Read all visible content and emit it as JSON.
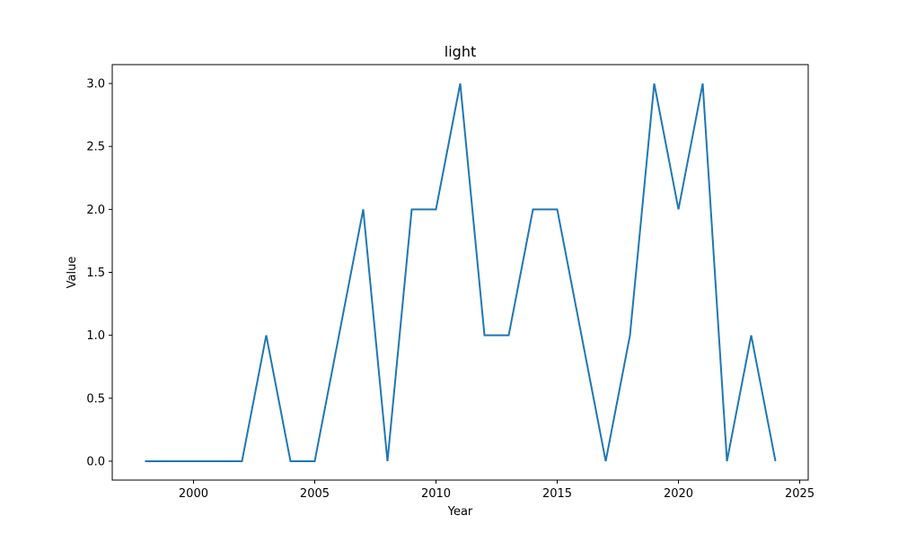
{
  "chart_data": {
    "type": "line",
    "title": "light",
    "xlabel": "Year",
    "ylabel": "Value",
    "xlim": [
      1996.65,
      2025.35
    ],
    "ylim": [
      -0.15,
      3.15
    ],
    "x_ticks": [
      2000,
      2005,
      2010,
      2015,
      2020,
      2025
    ],
    "y_ticks": [
      0.0,
      0.5,
      1.0,
      1.5,
      2.0,
      2.5,
      3.0
    ],
    "x_tick_labels": [
      "2000",
      "2005",
      "2010",
      "2015",
      "2020",
      "2025"
    ],
    "y_tick_labels": [
      "0.0",
      "0.5",
      "1.0",
      "1.5",
      "2.0",
      "2.5",
      "3.0"
    ],
    "grid": false,
    "series": [
      {
        "color": "#1f77b4",
        "x": [
          1998,
          1999,
          2000,
          2001,
          2002,
          2003,
          2004,
          2005,
          2006,
          2007,
          2008,
          2009,
          2010,
          2011,
          2012,
          2013,
          2014,
          2015,
          2016,
          2017,
          2018,
          2019,
          2020,
          2021,
          2022,
          2023,
          2024
        ],
        "values": [
          0,
          0,
          0,
          0,
          0,
          1,
          0,
          0,
          1,
          2,
          0,
          2,
          2,
          3,
          1,
          1,
          2,
          2,
          1,
          0,
          1,
          3,
          2,
          3,
          0,
          1,
          0
        ]
      }
    ]
  }
}
